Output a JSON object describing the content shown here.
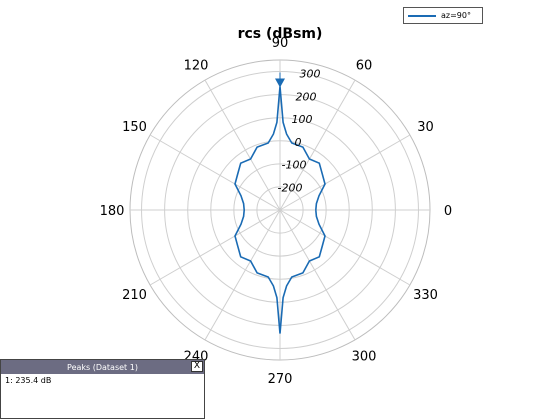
{
  "chart_data": {
    "type": "line",
    "subtype": "polar",
    "title": "rcs (dBsm)",
    "angle_ticks": [
      "0",
      "30",
      "60",
      "90",
      "120",
      "150",
      "180",
      "210",
      "240",
      "270",
      "300",
      "330"
    ],
    "radial_ticks": [
      "-200",
      "-100",
      "0",
      "100",
      "200",
      "300"
    ],
    "rlim": [
      -300,
      350
    ],
    "grid": true,
    "series": [
      {
        "name": "az=90°",
        "color": "#1a6bb4",
        "theta_deg": [
          0,
          10,
          20,
          30,
          40,
          50,
          60,
          70,
          80,
          85,
          88,
          90,
          92,
          95,
          100,
          110,
          120,
          130,
          140,
          150,
          160,
          170,
          180,
          190,
          200,
          210,
          220,
          230,
          240,
          250,
          260,
          265,
          268,
          270,
          272,
          275,
          280,
          290,
          300,
          310,
          320,
          330,
          340,
          350,
          360
        ],
        "r": [
          -145,
          -140,
          -120,
          -75,
          -60,
          -35,
          -45,
          -10,
          -5,
          30,
          80,
          235,
          80,
          30,
          -5,
          -10,
          -45,
          -35,
          -60,
          -75,
          -120,
          -140,
          -145,
          -140,
          -120,
          -75,
          -60,
          -35,
          -45,
          -10,
          -5,
          30,
          80,
          235,
          80,
          30,
          -5,
          -10,
          -45,
          -35,
          -60,
          -75,
          -120,
          -140,
          -145
        ]
      }
    ],
    "legend_position": "top-right"
  },
  "legend": {
    "label": "az=90°"
  },
  "peaks": {
    "title": "Peaks (Dataset 1)",
    "close_label": "X",
    "entries": [
      "1: 235.4 dB"
    ]
  }
}
